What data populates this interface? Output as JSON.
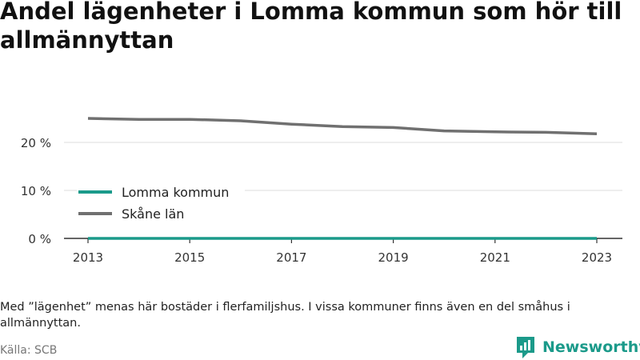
{
  "title": "Andel lägenheter i Lomma kommun som hör till allmännyttan",
  "note": "Med ”lägenhet” menas här bostäder i flerfamiljshus. I vissa kommuner finns även en del småhus i allmännyttan.",
  "source": "Källa: SCB",
  "brand": {
    "name": "Newsworthy",
    "icon": "newsworthy-logo-icon"
  },
  "colors": {
    "lomma": "#1b9a8a",
    "skane": "#707070",
    "grid": "#dddddd",
    "axis": "#333333"
  },
  "chart_data": {
    "type": "line",
    "x": [
      2013,
      2014,
      2015,
      2016,
      2017,
      2018,
      2019,
      2020,
      2021,
      2022,
      2023
    ],
    "series": [
      {
        "name": "Lomma kommun",
        "color": "#1b9a8a",
        "values": [
          0,
          0,
          0,
          0,
          0,
          0,
          0,
          0,
          0,
          0,
          0
        ]
      },
      {
        "name": "Skåne län",
        "color": "#707070",
        "values": [
          25.0,
          24.8,
          24.8,
          24.5,
          23.8,
          23.3,
          23.1,
          22.4,
          22.2,
          22.1,
          21.8
        ]
      }
    ],
    "xticks": [
      "2013",
      "2015",
      "2017",
      "2019",
      "2021",
      "2023"
    ],
    "yticks": [
      {
        "value": 0,
        "label": "0 %"
      },
      {
        "value": 10,
        "label": "10 %"
      },
      {
        "value": 20,
        "label": "20 %"
      }
    ],
    "ylim": [
      0,
      25
    ],
    "grid": true,
    "legend": "left, inside plot"
  }
}
